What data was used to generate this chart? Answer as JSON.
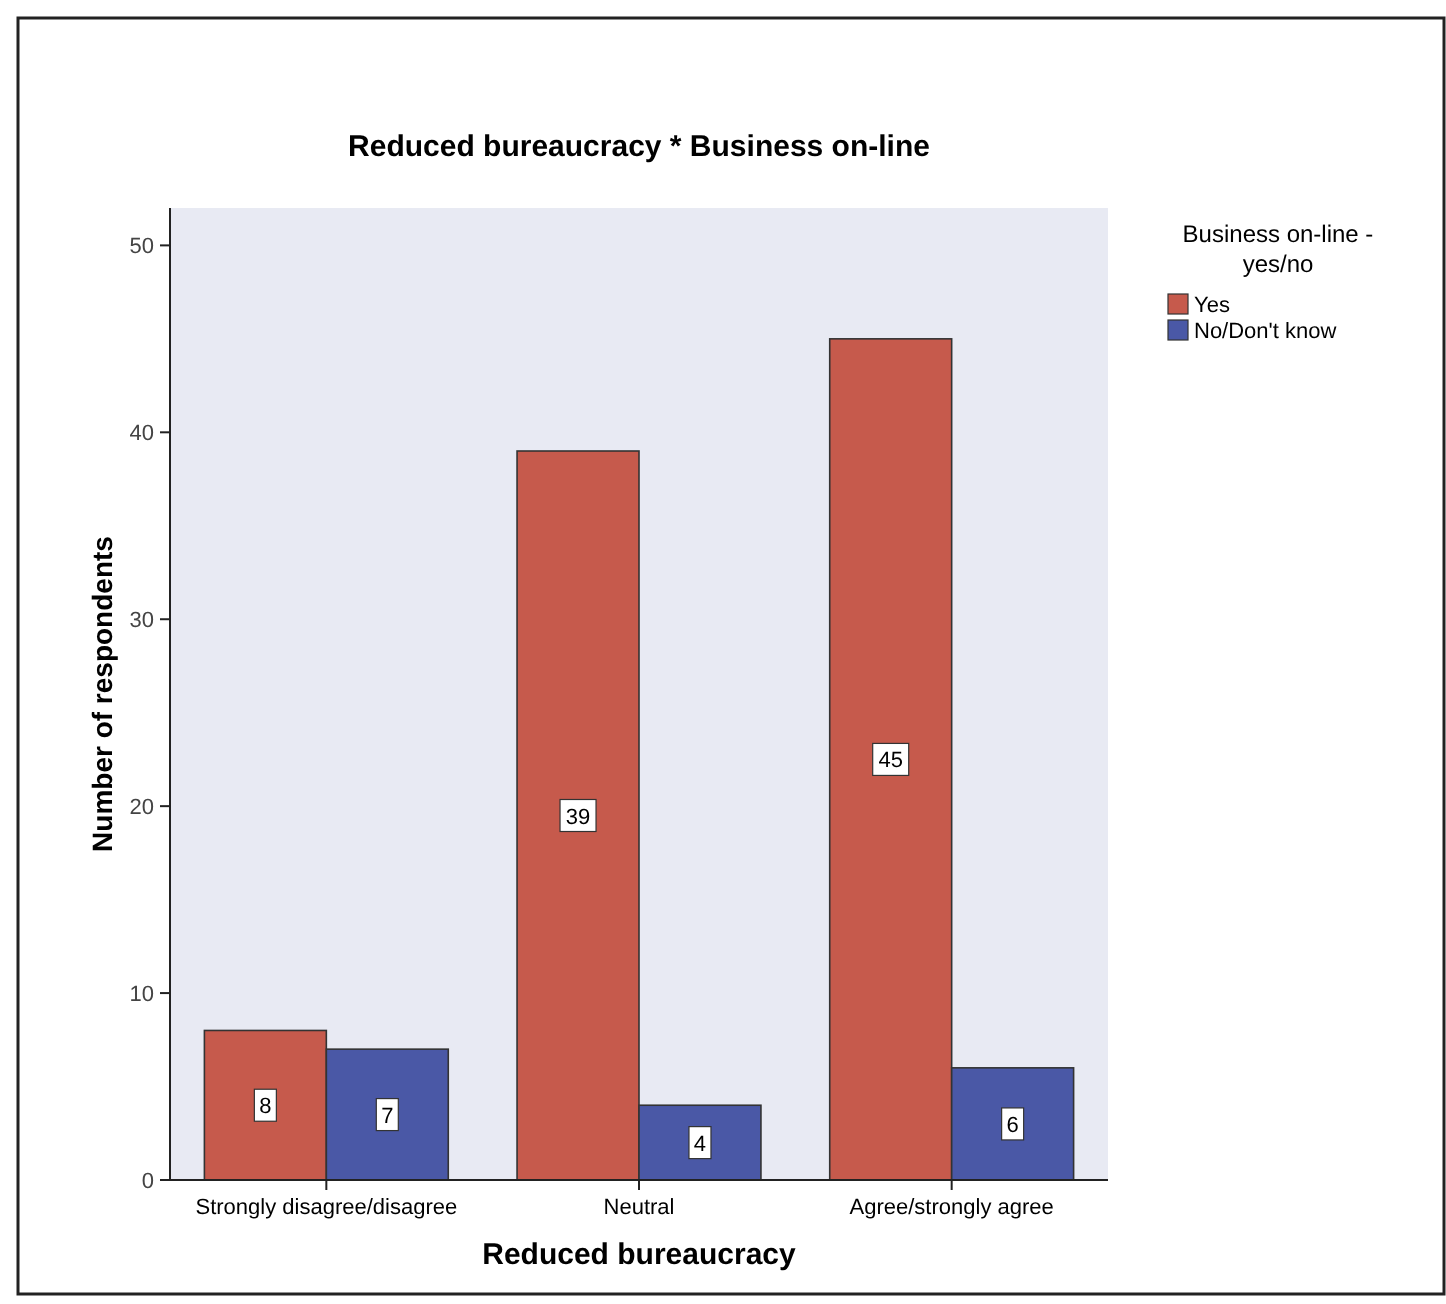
{
  "chart_data": {
    "type": "bar",
    "title": "Reduced bureaucracy * Business on-line",
    "xlabel": "Reduced bureaucracy",
    "ylabel": "Number of respondents",
    "legend_title": "Business on-line - yes/no",
    "categories": [
      "Strongly disagree/disagree",
      "Neutral",
      "Agree/strongly agree"
    ],
    "series": [
      {
        "name": "Yes",
        "color": "#c65a4c",
        "values": [
          8,
          39,
          45
        ]
      },
      {
        "name": "No/Don't know",
        "color": "#4a58a6",
        "values": [
          7,
          4,
          6
        ]
      }
    ],
    "ylim": [
      0,
      52
    ],
    "yticks": [
      0,
      10,
      20,
      30,
      40,
      50
    ],
    "data_labels": true,
    "legend": "right",
    "grid": false
  }
}
